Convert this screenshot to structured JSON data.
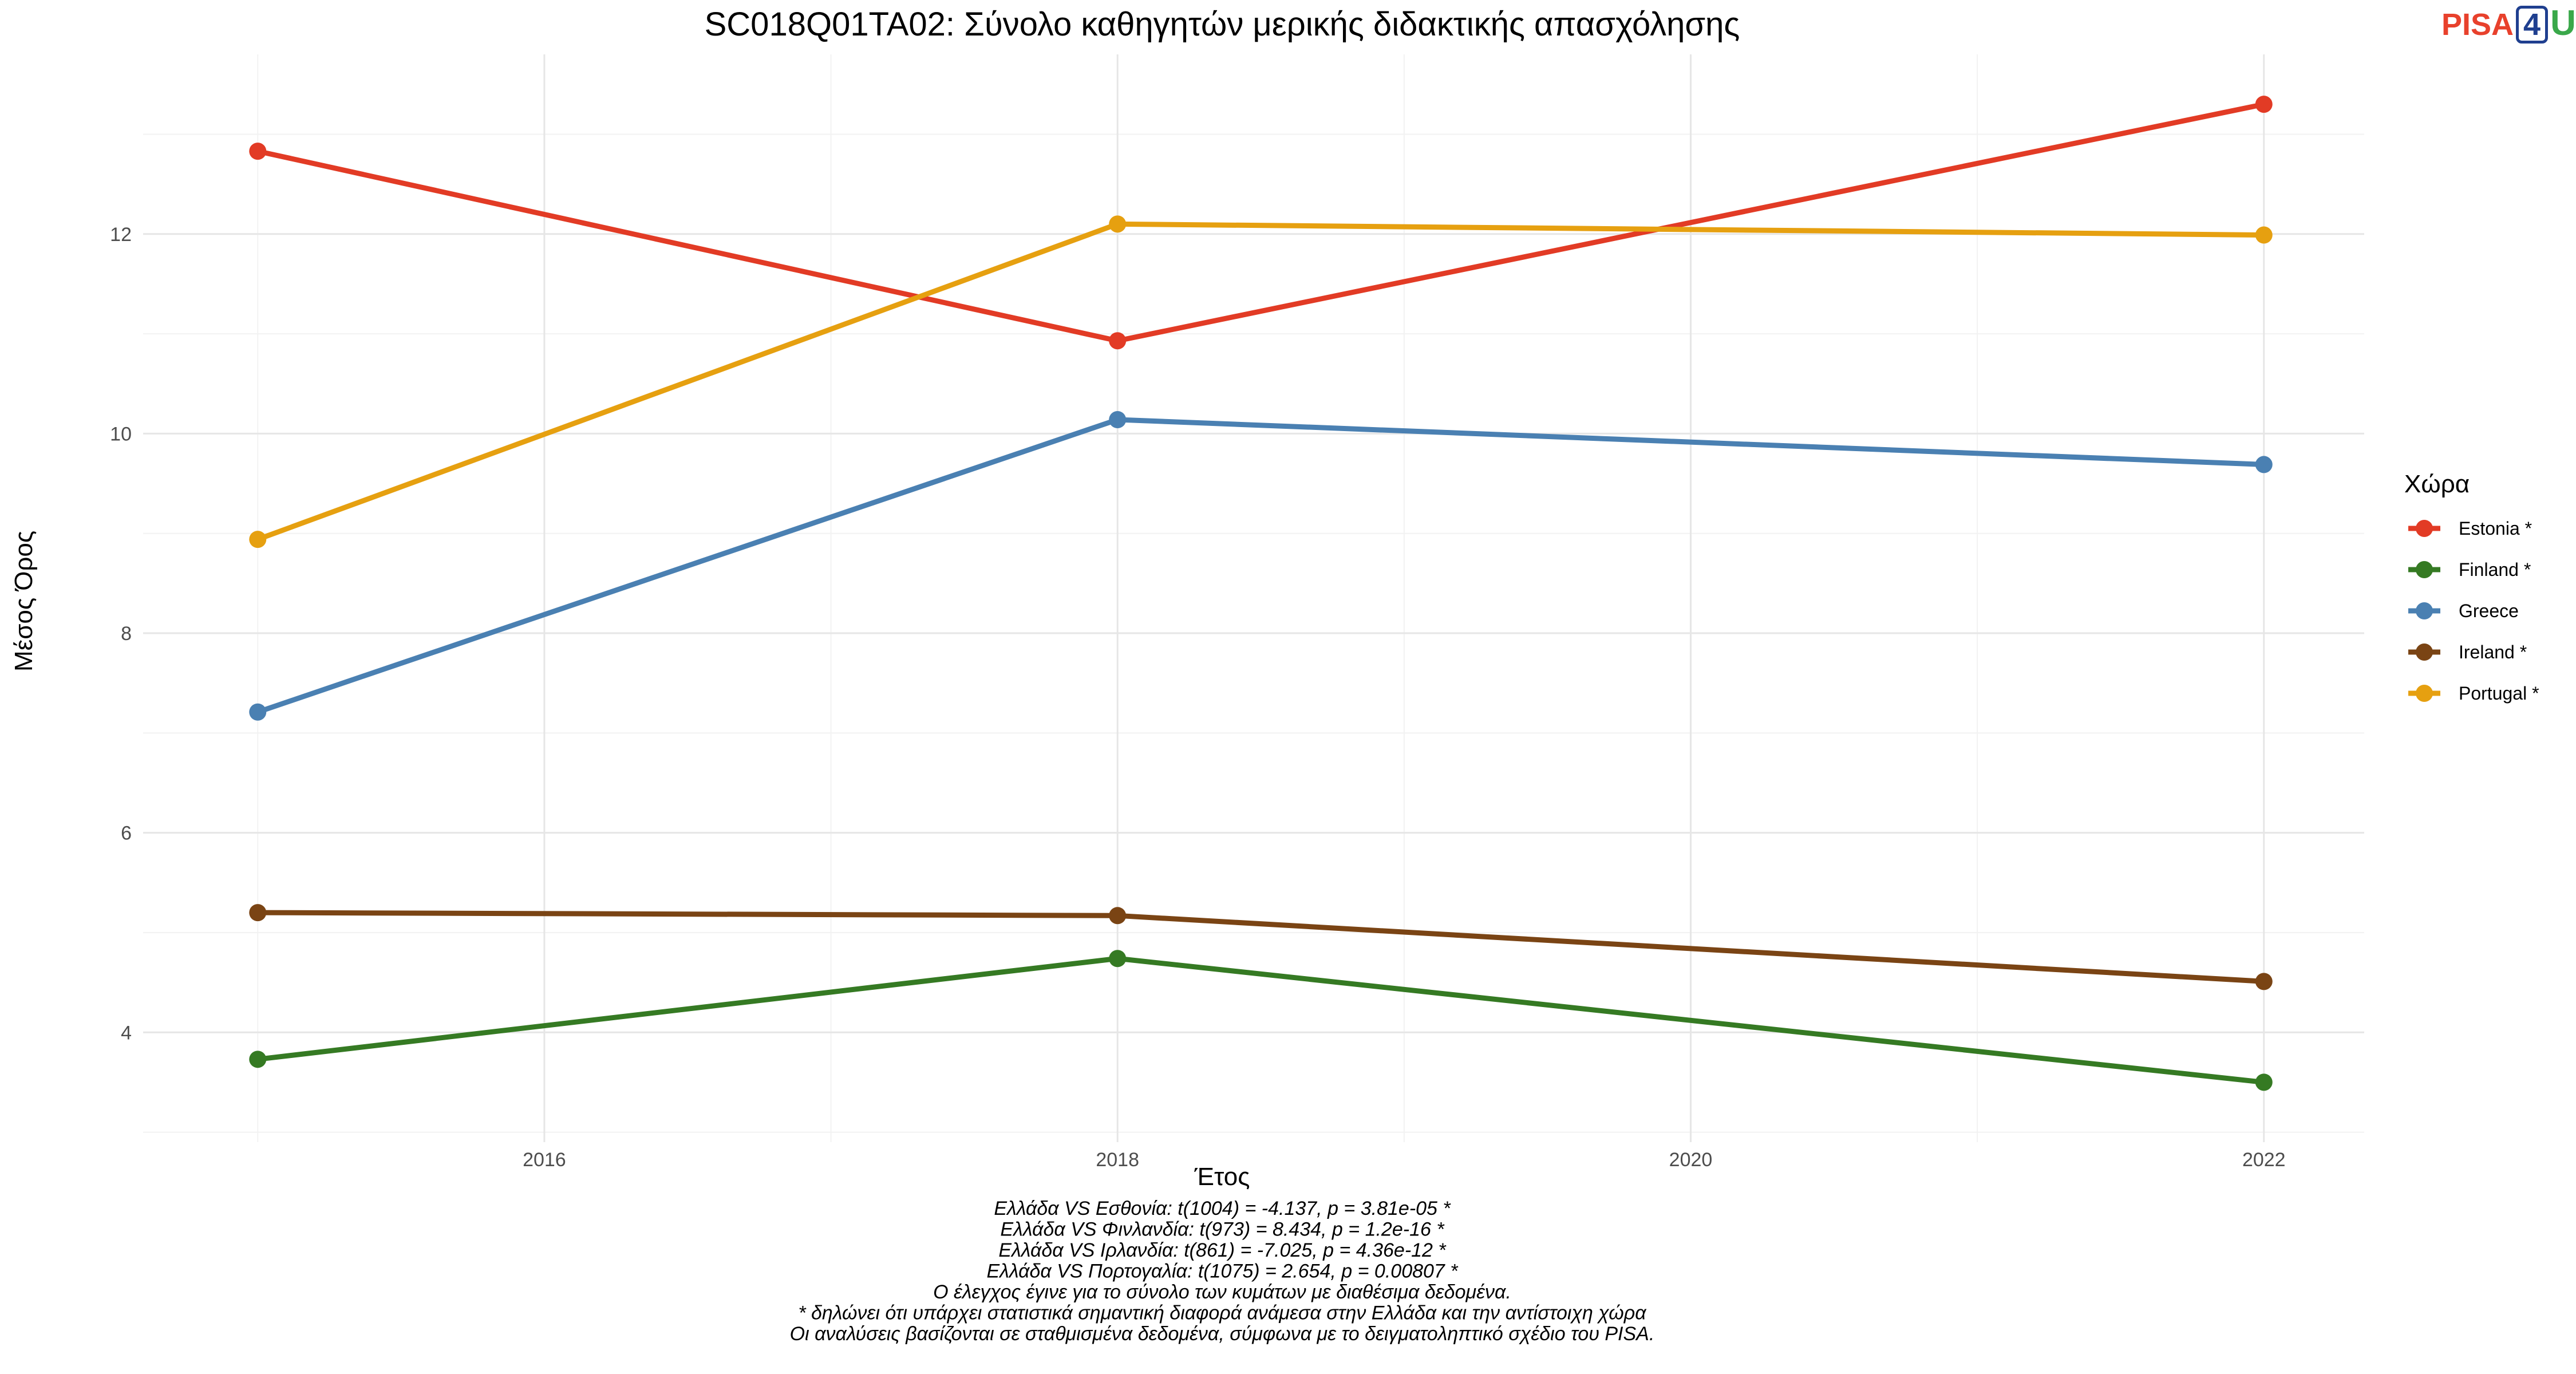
{
  "logo": {
    "left": "PISA",
    "mid": "4",
    "right": "U"
  },
  "chart_data": {
    "type": "line",
    "title": "SC018Q01TA02: Σύνολο καθηγητών μερικής διδακτικής απασχόλησης",
    "xlabel": "Έτος",
    "ylabel": "Μέσος Όρος",
    "xlim": [
      2014.6,
      2022.35
    ],
    "ylim": [
      2.9,
      13.8
    ],
    "x_ticks": [
      2016,
      2018,
      2020,
      2022
    ],
    "y_ticks": [
      4,
      6,
      8,
      10,
      12
    ],
    "grid": true,
    "legend_title": "Χώρα",
    "legend_position": "right",
    "x": [
      2015,
      2018,
      2022
    ],
    "series": [
      {
        "name": "Estonia *",
        "color": "#e23b25",
        "values": [
          12.83,
          10.93,
          13.3
        ]
      },
      {
        "name": "Finland *",
        "color": "#357a23",
        "values": [
          3.73,
          4.74,
          3.5
        ]
      },
      {
        "name": "Greece",
        "color": "#4a80b2",
        "values": [
          7.21,
          10.14,
          9.69
        ]
      },
      {
        "name": "Ireland *",
        "color": "#7a4414",
        "values": [
          5.2,
          5.17,
          4.51
        ]
      },
      {
        "name": "Portugal *",
        "color": "#e6a010",
        "values": [
          8.94,
          12.1,
          11.99
        ]
      }
    ],
    "caption": [
      "Ελλάδα VS Εσθονία: t(1004) = -4.137, p = 3.81e-05 *",
      "Ελλάδα VS Φινλανδία: t(973) = 8.434, p = 1.2e-16 *",
      "Ελλάδα VS Ιρλανδία: t(861) = -7.025, p = 4.36e-12 *",
      "Ελλάδα VS Πορτογαλία: t(1075) = 2.654, p = 0.00807 *",
      "Ο έλεγχος έγινε για το σύνολο των κυμάτων με διαθέσιμα δεδομένα.",
      "* δηλώνει ότι υπάρχει στατιστικά σημαντική διαφορά ανάμεσα στην Ελλάδα και την αντίστοιχη χώρα",
      "Οι αναλύσεις βασίζονται σε σταθμισμένα δεδομένα, σύμφωνα με το δειγματοληπτικό σχέδιο του PISA."
    ]
  }
}
